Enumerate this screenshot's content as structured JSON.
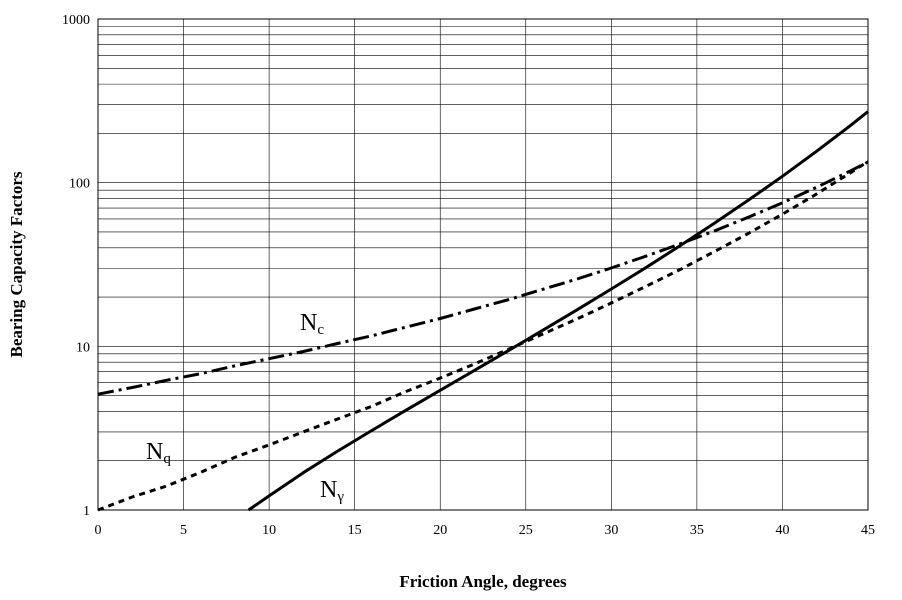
{
  "chart_data": {
    "type": "line",
    "title": "",
    "xlabel": "Friction Angle, degrees",
    "ylabel": "Bearing Capacity Factors",
    "xlim": [
      0,
      45
    ],
    "ylim": [
      1,
      1000
    ],
    "yscale": "log",
    "grid": true,
    "x_ticks": [
      0,
      5,
      10,
      15,
      20,
      25,
      30,
      35,
      40,
      45
    ],
    "y_ticks": [
      1,
      10,
      100,
      1000
    ],
    "x_tick_labels": [
      "0",
      "5",
      "10",
      "15",
      "20",
      "25",
      "30",
      "35",
      "40",
      "45"
    ],
    "y_tick_labels": [
      "1",
      "10",
      "100",
      "1000"
    ],
    "series": [
      {
        "name": "Nc",
        "label_main": "N",
        "label_sub": "c",
        "style": "long-dash-dot",
        "x": [
          0,
          2,
          4,
          6,
          8,
          10,
          12,
          14,
          16,
          18,
          20,
          22,
          24,
          26,
          28,
          30,
          32,
          34,
          36,
          38,
          40,
          42,
          44,
          45
        ],
        "y": [
          5.1,
          5.6,
          6.2,
          6.8,
          7.6,
          8.4,
          9.3,
          10.4,
          11.6,
          13.1,
          14.8,
          16.9,
          19.3,
          22.3,
          25.8,
          30.1,
          35.5,
          42.2,
          50.6,
          61.4,
          75.3,
          93.7,
          118.4,
          133.9
        ]
      },
      {
        "name": "Nq",
        "label_main": "N",
        "label_sub": "q",
        "style": "short-dash",
        "x": [
          0,
          2,
          4,
          6,
          8,
          10,
          12,
          14,
          16,
          18,
          20,
          22,
          24,
          26,
          28,
          30,
          32,
          34,
          36,
          38,
          40,
          42,
          44,
          45
        ],
        "y": [
          1.0,
          1.2,
          1.4,
          1.7,
          2.1,
          2.5,
          3.0,
          3.6,
          4.3,
          5.3,
          6.4,
          7.8,
          9.6,
          11.9,
          14.7,
          18.4,
          23.2,
          29.4,
          37.8,
          48.9,
          64.2,
          85.4,
          115.3,
          134.9
        ]
      },
      {
        "name": "Nγ",
        "label_main": "N",
        "label_sub": "γ",
        "style": "solid",
        "x": [
          8.8,
          10,
          12,
          14,
          16,
          18,
          20,
          22,
          24,
          26,
          28,
          30,
          32,
          34,
          36,
          38,
          40,
          42,
          44,
          45
        ],
        "y": [
          1.0,
          1.22,
          1.69,
          2.29,
          3.06,
          4.07,
          5.39,
          7.13,
          9.44,
          12.54,
          16.72,
          22.4,
          30.2,
          41.1,
          56.3,
          78.0,
          109.4,
          155.6,
          224.6,
          271.8
        ]
      }
    ]
  }
}
